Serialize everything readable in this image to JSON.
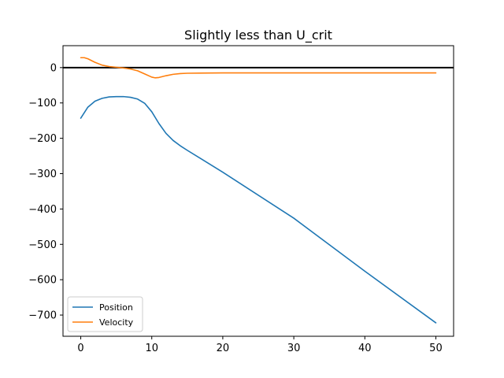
{
  "chart_data": {
    "type": "line",
    "title": "Slightly less than U_crit",
    "xlabel": "",
    "ylabel": "",
    "xlim": [
      -2.5,
      52.5
    ],
    "ylim": [
      -760,
      62
    ],
    "x_ticks": [
      0,
      10,
      20,
      30,
      40,
      50
    ],
    "y_ticks": [
      0,
      -100,
      -200,
      -300,
      -400,
      -500,
      -600,
      -700
    ],
    "x_tick_labels": [
      "0",
      "10",
      "20",
      "30",
      "40",
      "50"
    ],
    "y_tick_labels": [
      "0",
      "−100",
      "−200",
      "−300",
      "−400",
      "−500",
      "−600",
      "−700"
    ],
    "grid": false,
    "legend_position": "lower-left",
    "reference_line": {
      "y": 0,
      "color": "#000000"
    },
    "series": [
      {
        "name": "Position",
        "color": "#1f77b4",
        "x": [
          0,
          1,
          2,
          3,
          4,
          5,
          6,
          7,
          8,
          9,
          10,
          11,
          12,
          13,
          14,
          15,
          20,
          30,
          40,
          50
        ],
        "y": [
          -143,
          -112,
          -95,
          -87,
          -83,
          -82,
          -82,
          -84,
          -89,
          -101,
          -125,
          -158,
          -186,
          -206,
          -221,
          -234,
          -296,
          -426,
          -576,
          -722
        ]
      },
      {
        "name": "Velocity",
        "color": "#ff7f0e",
        "x": [
          0,
          0.5,
          1,
          2,
          3,
          4,
          5,
          6,
          7,
          8,
          9,
          10,
          10.5,
          11,
          12,
          13,
          14,
          15,
          20,
          30,
          40,
          50
        ],
        "y": [
          28,
          28,
          25,
          15,
          7,
          3,
          1,
          -1,
          -4,
          -9,
          -18,
          -27,
          -29,
          -28,
          -23,
          -19,
          -17,
          -16,
          -15,
          -15,
          -15,
          -15
        ]
      }
    ]
  }
}
